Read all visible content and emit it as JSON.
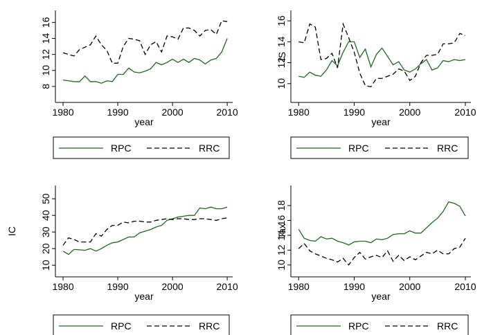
{
  "chart_data": [
    {
      "type": "line",
      "xlabel": "year",
      "legend": "bottom",
      "x": [
        1980,
        1981,
        1982,
        1983,
        1984,
        1985,
        1986,
        1987,
        1988,
        1989,
        1990,
        1991,
        1992,
        1993,
        1994,
        1995,
        1996,
        1997,
        1998,
        1999,
        2000,
        2001,
        2002,
        2003,
        2004,
        2005,
        2006,
        2007,
        2008,
        2009,
        2010
      ],
      "xlim": [
        1978.6,
        2011
      ],
      "xticks": [
        1980,
        1990,
        2000,
        2010
      ],
      "ylim": [
        6.0,
        17.5
      ],
      "yticks": [
        8,
        10,
        12,
        14,
        16
      ],
      "series": [
        {
          "name": "RPC",
          "color": "#1a6b1a",
          "dash": false,
          "values": [
            8.8,
            8.7,
            8.6,
            8.6,
            9.3,
            8.6,
            8.6,
            8.4,
            8.7,
            8.6,
            9.5,
            9.5,
            10.3,
            9.8,
            9.7,
            9.9,
            10.2,
            11.0,
            10.7,
            11.0,
            11.4,
            11.0,
            11.4,
            11.0,
            11.5,
            11.3,
            10.8,
            11.3,
            11.5,
            12.3,
            14.0
          ]
        },
        {
          "name": "RRC",
          "color": "#000000",
          "dash": true,
          "values": [
            12.2,
            12.0,
            11.8,
            12.6,
            12.9,
            13.2,
            14.3,
            13.2,
            12.5,
            10.9,
            10.9,
            13.0,
            14.0,
            13.9,
            13.7,
            12.0,
            13.2,
            13.6,
            12.3,
            14.3,
            14.2,
            13.9,
            15.3,
            15.3,
            15.0,
            14.3,
            15.0,
            15.1,
            14.5,
            16.2,
            16.1
          ]
        }
      ]
    },
    {
      "type": "line",
      "ylabel": "IS",
      "xlabel": "year",
      "legend": "bottom",
      "x": [
        1980,
        1981,
        1982,
        1983,
        1984,
        1985,
        1986,
        1987,
        1988,
        1989,
        1990,
        1991,
        1992,
        1993,
        1994,
        1995,
        1996,
        1997,
        1998,
        1999,
        2000,
        2001,
        2002,
        2003,
        2004,
        2005,
        2006,
        2007,
        2008,
        2009,
        2010
      ],
      "xlim": [
        1978.6,
        2011
      ],
      "xticks": [
        1980,
        1990,
        2000,
        2010
      ],
      "ylim": [
        8.2,
        17.0
      ],
      "yticks": [
        10,
        12,
        14,
        16
      ],
      "series": [
        {
          "name": "RPC",
          "color": "#1a6b1a",
          "dash": false,
          "values": [
            10.7,
            10.6,
            11.1,
            10.8,
            10.7,
            11.3,
            12.2,
            11.7,
            13.0,
            14.0,
            14.0,
            12.5,
            13.3,
            11.6,
            12.8,
            13.4,
            12.6,
            11.8,
            12.1,
            11.3,
            11.1,
            11.4,
            11.9,
            12.3,
            11.3,
            11.5,
            12.2,
            12.1,
            12.3,
            12.2,
            12.3
          ]
        },
        {
          "name": "RRC",
          "color": "#000000",
          "dash": true,
          "values": [
            14.0,
            13.9,
            15.7,
            15.4,
            12.3,
            12.4,
            12.9,
            11.5,
            15.7,
            14.4,
            13.0,
            11.0,
            9.8,
            9.7,
            10.5,
            10.5,
            10.7,
            10.9,
            11.4,
            11.2,
            10.3,
            10.7,
            12.0,
            12.7,
            12.7,
            12.8,
            13.8,
            13.8,
            13.9,
            14.8,
            14.6
          ]
        }
      ]
    },
    {
      "type": "line",
      "ylabel": "IC",
      "xlabel": "year",
      "legend": "bottom",
      "x": [
        1980,
        1981,
        1982,
        1983,
        1984,
        1985,
        1986,
        1987,
        1988,
        1989,
        1990,
        1991,
        1992,
        1993,
        1994,
        1995,
        1996,
        1997,
        1998,
        1999,
        2000,
        2001,
        2002,
        2003,
        2004,
        2005,
        2006,
        2007,
        2008,
        2009,
        2010
      ],
      "xlim": [
        1978.6,
        2011
      ],
      "xticks": [
        1980,
        1990,
        2000,
        2010
      ],
      "ylim": [
        3,
        58
      ],
      "yticks": [
        10,
        20,
        30,
        40,
        50
      ],
      "series": [
        {
          "name": "RPC",
          "color": "#1a6b1a",
          "dash": false,
          "values": [
            18.5,
            16.5,
            19.5,
            19.3,
            19,
            20,
            18.5,
            20,
            22,
            23.5,
            24,
            25.5,
            27,
            27,
            29.5,
            30.5,
            31.5,
            33,
            34,
            37,
            38,
            39,
            39.5,
            40,
            40,
            44.5,
            44,
            45,
            44,
            44,
            45
          ]
        },
        {
          "name": "RRC",
          "color": "#000000",
          "dash": true,
          "values": [
            22,
            26.5,
            25.5,
            24,
            24,
            24,
            29,
            27.5,
            31.5,
            34,
            34,
            36,
            35.5,
            36.5,
            36.5,
            36,
            36,
            37,
            37.5,
            38,
            37.5,
            38,
            38,
            37.5,
            37.5,
            38,
            38,
            37.5,
            37,
            38,
            38.5
          ]
        }
      ]
    },
    {
      "type": "line",
      "ylabel": "Tax",
      "xlabel": "year",
      "legend": "bottom",
      "x": [
        1980,
        1981,
        1982,
        1983,
        1984,
        1985,
        1986,
        1987,
        1988,
        1989,
        1990,
        1991,
        1992,
        1993,
        1994,
        1995,
        1996,
        1997,
        1998,
        1999,
        2000,
        2001,
        2002,
        2003,
        2004,
        2005,
        2006,
        2007,
        2008,
        2009,
        2010
      ],
      "xlim": [
        1978.6,
        2011
      ],
      "xticks": [
        1980,
        1990,
        2000,
        2010
      ],
      "ylim": [
        8.4,
        20.7
      ],
      "yticks": [
        10,
        12,
        14,
        16,
        18
      ],
      "series": [
        {
          "name": "RPC",
          "color": "#1a6b1a",
          "dash": false,
          "values": [
            14.8,
            13.6,
            13.3,
            13.2,
            13.8,
            13.5,
            13.6,
            13.2,
            13.0,
            12.7,
            13.1,
            13.2,
            13.2,
            13.0,
            13.5,
            13.4,
            13.6,
            14.1,
            14.2,
            14.2,
            14.6,
            14.3,
            14.3,
            15.0,
            15.7,
            16.3,
            17.2,
            18.5,
            18.3,
            17.9,
            16.6
          ]
        },
        {
          "name": "RRC",
          "color": "#000000",
          "dash": true,
          "values": [
            12.2,
            12.9,
            11.9,
            11.5,
            11.2,
            10.9,
            10.7,
            10.4,
            10.9,
            10.0,
            11.0,
            11.7,
            10.8,
            11.1,
            11.3,
            11.0,
            11.9,
            10.5,
            11.3,
            10.6,
            11.1,
            10.7,
            11.2,
            11.7,
            11.5,
            12.0,
            11.5,
            11.5,
            12.2,
            12.4,
            13.6
          ]
        }
      ]
    }
  ]
}
